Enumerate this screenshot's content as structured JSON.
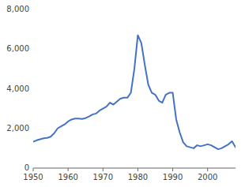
{
  "chart_data": {
    "type": "line",
    "x": [
      1950,
      1951,
      1952,
      1953,
      1954,
      1955,
      1956,
      1957,
      1958,
      1959,
      1960,
      1961,
      1962,
      1963,
      1964,
      1965,
      1966,
      1967,
      1968,
      1969,
      1970,
      1971,
      1972,
      1973,
      1974,
      1975,
      1976,
      1977,
      1978,
      1979,
      1980,
      1981,
      1982,
      1983,
      1984,
      1985,
      1986,
      1987,
      1988,
      1989,
      1990,
      1991,
      1992,
      1993,
      1994,
      1995,
      1996,
      1997,
      1998,
      1999,
      2000,
      2001,
      2002,
      2003,
      2004,
      2005,
      2006,
      2007,
      2008
    ],
    "values": [
      1335,
      1400,
      1450,
      1500,
      1520,
      1580,
      1750,
      2000,
      2100,
      2200,
      2350,
      2450,
      2500,
      2500,
      2480,
      2520,
      2600,
      2700,
      2750,
      2900,
      3000,
      3100,
      3300,
      3200,
      3350,
      3500,
      3550,
      3550,
      3800,
      5000,
      6700,
      6300,
      5200,
      4200,
      3800,
      3700,
      3400,
      3300,
      3700,
      3800,
      3800,
      2450,
      1800,
      1300,
      1100,
      1050,
      1000,
      1150,
      1100,
      1150,
      1200,
      1150,
      1050,
      950,
      1000,
      1100,
      1200,
      1350,
      1050
    ],
    "color": "#4472C4",
    "xlim": [
      1950,
      2008
    ],
    "ylim": [
      0,
      8000
    ],
    "xticks": [
      1950,
      1960,
      1970,
      1980,
      1990,
      2000
    ],
    "yticks": [
      0,
      {
        "value": 2000,
        "label": "2,000"
      },
      {
        "value": 4000,
        "label": "4,000"
      },
      {
        "value": 6000,
        "label": "6,000"
      },
      {
        "value": 8000,
        "label": "8,000"
      }
    ]
  }
}
